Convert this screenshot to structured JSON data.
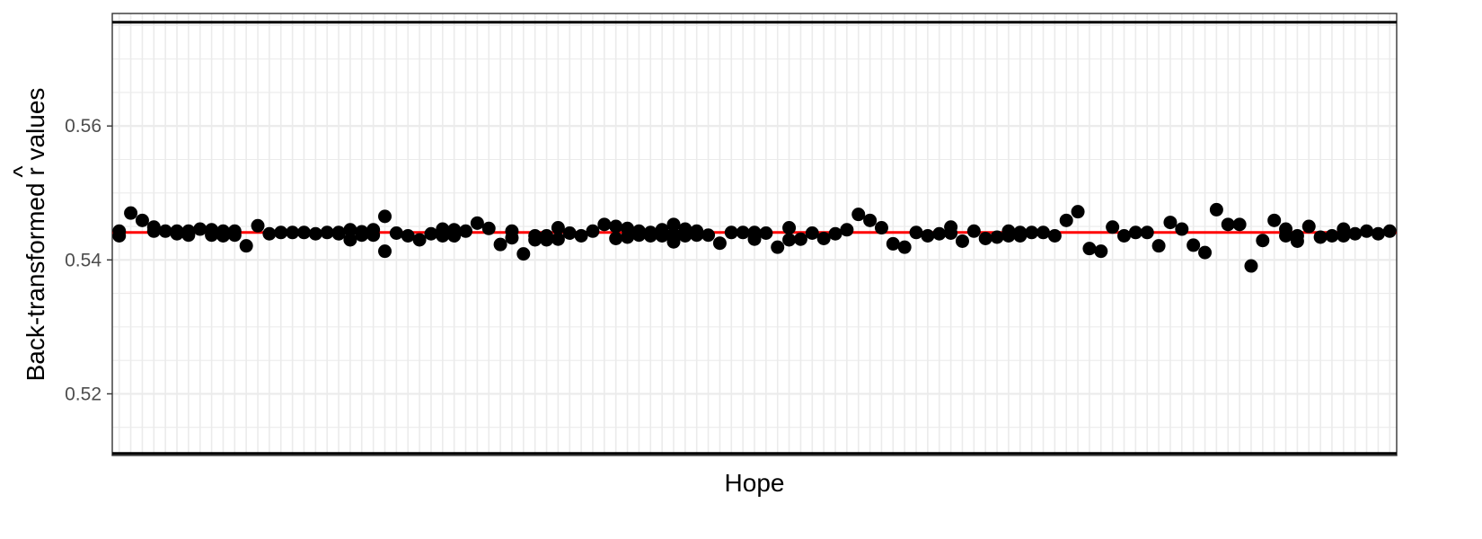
{
  "chart_data": {
    "type": "scatter",
    "xlabel": "Hope",
    "ylabel_prefix": "Back-transformed ",
    "ylabel_symbol": "r",
    "ylabel_hat": "^",
    "ylabel_suffix": " values",
    "ylim": [
      0.5108,
      0.5768
    ],
    "yticks": [
      {
        "value": 0.52,
        "label": "0.52"
      },
      {
        "value": 0.54,
        "label": "0.54"
      },
      {
        "value": 0.56,
        "label": "0.56"
      }
    ],
    "grid": true,
    "x_tick_labels": false,
    "reference_lines": [
      {
        "value": 0.5441,
        "color": "#ff0000",
        "role": "mean"
      },
      {
        "value": 0.5755,
        "color": "#000000",
        "role": "upper-bound"
      },
      {
        "value": 0.5111,
        "color": "#000000",
        "role": "lower-bound"
      }
    ],
    "point_color": "#000000",
    "points": [
      [
        1,
        0.5436
      ],
      [
        1,
        0.5443
      ],
      [
        2,
        0.547
      ],
      [
        3,
        0.5459
      ],
      [
        4,
        0.5449
      ],
      [
        4,
        0.5443
      ],
      [
        5,
        0.5443
      ],
      [
        6,
        0.5439
      ],
      [
        6,
        0.5443
      ],
      [
        7,
        0.5437
      ],
      [
        7,
        0.5443
      ],
      [
        8,
        0.5446
      ],
      [
        9,
        0.5437
      ],
      [
        9,
        0.5445
      ],
      [
        10,
        0.5436
      ],
      [
        10,
        0.5443
      ],
      [
        11,
        0.5437
      ],
      [
        11,
        0.5443
      ],
      [
        12,
        0.5421
      ],
      [
        13,
        0.5451
      ],
      [
        14,
        0.5439
      ],
      [
        15,
        0.5441
      ],
      [
        16,
        0.5441
      ],
      [
        17,
        0.5441
      ],
      [
        18,
        0.5439
      ],
      [
        19,
        0.5441
      ],
      [
        20,
        0.5439
      ],
      [
        20,
        0.5441
      ],
      [
        21,
        0.543
      ],
      [
        21,
        0.5445
      ],
      [
        22,
        0.5437
      ],
      [
        22,
        0.5442
      ],
      [
        23,
        0.5437
      ],
      [
        23,
        0.5445
      ],
      [
        24,
        0.5413
      ],
      [
        24,
        0.5465
      ],
      [
        25,
        0.544
      ],
      [
        26,
        0.5436
      ],
      [
        27,
        0.543
      ],
      [
        28,
        0.5439
      ],
      [
        29,
        0.5436
      ],
      [
        29,
        0.5446
      ],
      [
        30,
        0.5436
      ],
      [
        30,
        0.5445
      ],
      [
        31,
        0.5443
      ],
      [
        32,
        0.5455
      ],
      [
        33,
        0.5447
      ],
      [
        34,
        0.5423
      ],
      [
        35,
        0.5433
      ],
      [
        35,
        0.5443
      ],
      [
        36,
        0.5409
      ],
      [
        37,
        0.543
      ],
      [
        37,
        0.5436
      ],
      [
        38,
        0.543
      ],
      [
        38,
        0.5436
      ],
      [
        39,
        0.5431
      ],
      [
        39,
        0.5448
      ],
      [
        40,
        0.544
      ],
      [
        41,
        0.5436
      ],
      [
        42,
        0.5443
      ],
      [
        43,
        0.5453
      ],
      [
        44,
        0.5432
      ],
      [
        44,
        0.545
      ],
      [
        45,
        0.5434
      ],
      [
        45,
        0.5447
      ],
      [
        46,
        0.5437
      ],
      [
        46,
        0.5443
      ],
      [
        47,
        0.5436
      ],
      [
        47,
        0.5441
      ],
      [
        48,
        0.5436
      ],
      [
        48,
        0.5445
      ],
      [
        49,
        0.5427
      ],
      [
        49,
        0.5438
      ],
      [
        49,
        0.5453
      ],
      [
        50,
        0.5436
      ],
      [
        50,
        0.5446
      ],
      [
        51,
        0.5437
      ],
      [
        51,
        0.5443
      ],
      [
        52,
        0.5437
      ],
      [
        53,
        0.5425
      ],
      [
        54,
        0.5441
      ],
      [
        55,
        0.5441
      ],
      [
        56,
        0.5431
      ],
      [
        56,
        0.5441
      ],
      [
        57,
        0.544
      ],
      [
        58,
        0.5419
      ],
      [
        59,
        0.543
      ],
      [
        59,
        0.5448
      ],
      [
        60,
        0.5431
      ],
      [
        61,
        0.544
      ],
      [
        62,
        0.5432
      ],
      [
        63,
        0.5439
      ],
      [
        64,
        0.5445
      ],
      [
        65,
        0.5468
      ],
      [
        66,
        0.5459
      ],
      [
        67,
        0.5448
      ],
      [
        68,
        0.5424
      ],
      [
        69,
        0.5419
      ],
      [
        70,
        0.5441
      ],
      [
        71,
        0.5436
      ],
      [
        72,
        0.5439
      ],
      [
        73,
        0.544
      ],
      [
        73,
        0.5449
      ],
      [
        74,
        0.5428
      ],
      [
        75,
        0.5443
      ],
      [
        76,
        0.5432
      ],
      [
        77,
        0.5434
      ],
      [
        78,
        0.5436
      ],
      [
        78,
        0.5443
      ],
      [
        79,
        0.5436
      ],
      [
        79,
        0.5441
      ],
      [
        80,
        0.5441
      ],
      [
        81,
        0.5441
      ],
      [
        82,
        0.5436
      ],
      [
        83,
        0.5459
      ],
      [
        84,
        0.5472
      ],
      [
        85,
        0.5417
      ],
      [
        86,
        0.5413
      ],
      [
        87,
        0.5449
      ],
      [
        88,
        0.5436
      ],
      [
        89,
        0.5441
      ],
      [
        90,
        0.5441
      ],
      [
        91,
        0.5421
      ],
      [
        92,
        0.5456
      ],
      [
        93,
        0.5446
      ],
      [
        94,
        0.5422
      ],
      [
        95,
        0.5411
      ],
      [
        96,
        0.5475
      ],
      [
        97,
        0.5453
      ],
      [
        98,
        0.5453
      ],
      [
        99,
        0.5391
      ],
      [
        100,
        0.5429
      ],
      [
        101,
        0.5459
      ],
      [
        102,
        0.5436
      ],
      [
        102,
        0.5446
      ],
      [
        103,
        0.5428
      ],
      [
        103,
        0.5436
      ],
      [
        104,
        0.545
      ],
      [
        105,
        0.5434
      ],
      [
        106,
        0.5436
      ],
      [
        107,
        0.5436
      ],
      [
        107,
        0.5446
      ],
      [
        108,
        0.5439
      ],
      [
        109,
        0.5443
      ],
      [
        110,
        0.5439
      ],
      [
        111,
        0.5443
      ]
    ]
  }
}
